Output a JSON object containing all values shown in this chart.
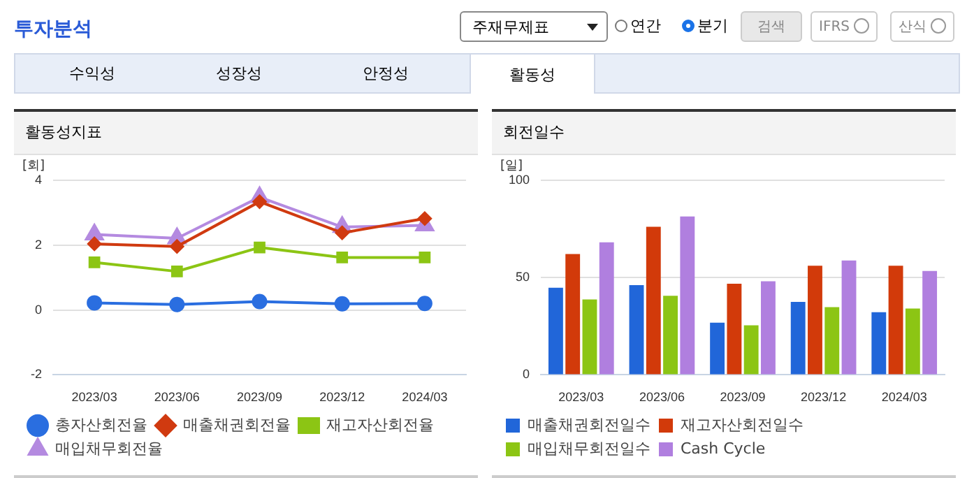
{
  "chart_data": [
    {
      "type": "other",
      "annotations": [
        "투자분석",
        "주재무제표",
        "연간",
        "분기",
        "검색",
        "IFRS",
        "산식",
        "수익성",
        "성장성",
        "안정성",
        "활동성"
      ]
    },
    {
      "type": "line",
      "title": "활동성지표",
      "ylabel": "[회]",
      "categories": [
        "2023/03",
        "2023/06",
        "2023/09",
        "2023/12",
        "2024/03"
      ],
      "ylim": [
        -2,
        4
      ],
      "yticks": [
        -2,
        0,
        2,
        4
      ],
      "grid": "y",
      "legend": "bottom",
      "series": [
        {
          "name": "총자산회전율",
          "color": "#2a6ee0",
          "marker": "circle",
          "values": [
            0.22,
            0.17,
            0.26,
            0.19,
            0.2
          ]
        },
        {
          "name": "매출채권회전율",
          "color": "#d03a10",
          "marker": "diamond",
          "values": [
            2.04,
            1.96,
            3.34,
            2.38,
            2.82
          ]
        },
        {
          "name": "재고자산회전율",
          "color": "#8cc514",
          "marker": "square",
          "values": [
            1.47,
            1.19,
            1.93,
            1.62,
            1.62
          ]
        },
        {
          "name": "매입채무회전율",
          "color": "#b48ae0",
          "marker": "triangle",
          "values": [
            2.33,
            2.21,
            3.48,
            2.56,
            2.61
          ]
        }
      ]
    },
    {
      "type": "bar",
      "title": "회전일수",
      "ylabel": "[일]",
      "categories": [
        "2023/03",
        "2023/06",
        "2023/09",
        "2023/12",
        "2024/03"
      ],
      "ylim": [
        0,
        100
      ],
      "yticks": [
        0,
        50,
        100
      ],
      "grid": "y",
      "legend": "bottom",
      "series": [
        {
          "name": "매출채권회전일수",
          "color": "#2166d9",
          "values": [
            44.8,
            46.1,
            26.8,
            37.5,
            32.2
          ]
        },
        {
          "name": "재고자산회전일수",
          "color": "#d23a0a",
          "values": [
            62.1,
            76.1,
            46.8,
            56.1,
            56.1
          ]
        },
        {
          "name": "매입채무회전일수",
          "color": "#8cc514",
          "values": [
            38.8,
            40.6,
            25.5,
            34.8,
            34.1
          ]
        },
        {
          "name": "Cash Cycle",
          "color": "#b07fdf",
          "values": [
            68.1,
            81.4,
            48.1,
            58.8,
            53.4
          ]
        }
      ]
    }
  ]
}
